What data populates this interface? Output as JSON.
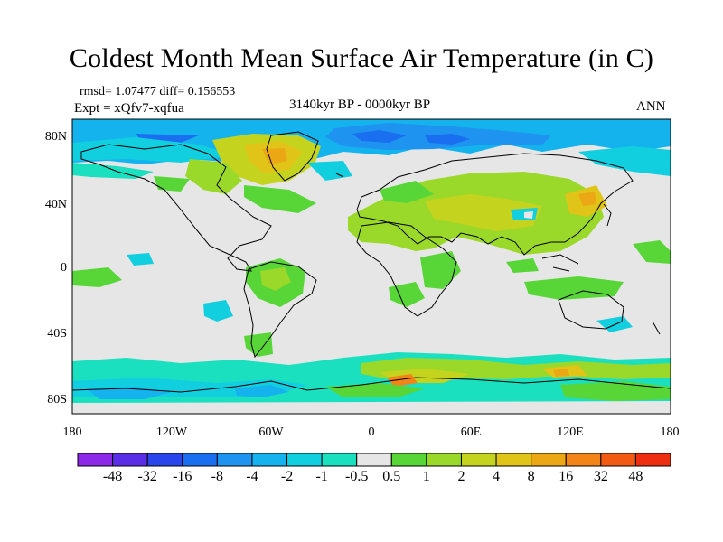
{
  "title": "Coldest Month Mean Surface Air Temperature (in C)",
  "stats": {
    "rmsd_line": "rmsd= 1.07477 diff= 0.156553",
    "expt_line": "Expt = xQfv7-xqfua",
    "period": "3140kyr BP - 0000kyr BP",
    "season": "ANN"
  },
  "map": {
    "lat_labels": [
      "80N",
      "40N",
      "0",
      "40S",
      "80S"
    ],
    "lon_labels": [
      "180",
      "120W",
      "60W",
      "0",
      "60E",
      "120E",
      "180"
    ],
    "land_color": "#e6e6e6",
    "coast_color": "#000000"
  },
  "colorbar": {
    "colors": [
      "#8c28e8",
      "#5a2ee6",
      "#2a46ea",
      "#1a6ff0",
      "#1e93ef",
      "#14b3ee",
      "#12cfe0",
      "#1ae0c0",
      "#e6e6e6",
      "#58d638",
      "#9ad82a",
      "#c4d41e",
      "#e0c418",
      "#eca814",
      "#f28418",
      "#f25a14",
      "#ee2e10"
    ],
    "labels": [
      "-48",
      "-32",
      "-16",
      "-8",
      "-4",
      "-2",
      "-1",
      "-0.5",
      "0.5",
      "1",
      "2",
      "4",
      "8",
      "16",
      "32",
      "48"
    ]
  }
}
